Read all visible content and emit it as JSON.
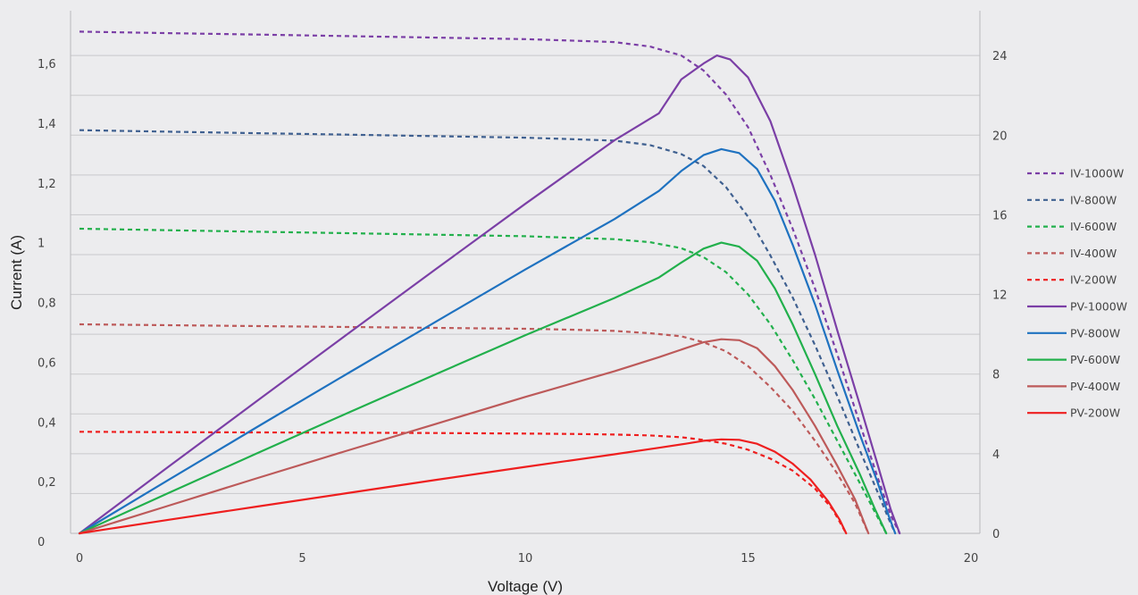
{
  "chart_data": {
    "type": "line",
    "title": "",
    "xlabel": "Voltage (V)",
    "ylabel": "Current (A)",
    "y2label": "",
    "xlim": [
      -0.2,
      20.2
    ],
    "ylim": [
      0,
      1.75
    ],
    "y2lim": [
      0,
      26.25
    ],
    "x_ticks": [
      {
        "value": 0,
        "label": "0"
      },
      {
        "value": 5,
        "label": "5"
      },
      {
        "value": 10,
        "label": "10"
      },
      {
        "value": 15,
        "label": "15"
      },
      {
        "value": 20,
        "label": "20"
      }
    ],
    "y_ticks": [
      {
        "value": 0,
        "label": "0"
      },
      {
        "value": 0.2,
        "label": "0,2"
      },
      {
        "value": 0.4,
        "label": "0,4"
      },
      {
        "value": 0.6,
        "label": "0,6"
      },
      {
        "value": 0.8,
        "label": "0,8"
      },
      {
        "value": 1.0,
        "label": "1"
      },
      {
        "value": 1.2,
        "label": "1,2"
      },
      {
        "value": 1.4,
        "label": "1,4"
      },
      {
        "value": 1.6,
        "label": "1,6"
      }
    ],
    "y2_ticks": [
      {
        "value": 0,
        "label": "0"
      },
      {
        "value": 4,
        "label": "4"
      },
      {
        "value": 8,
        "label": "8"
      },
      {
        "value": 12,
        "label": "12"
      },
      {
        "value": 16,
        "label": "16"
      },
      {
        "value": 20,
        "label": "20"
      },
      {
        "value": 24,
        "label": "24"
      }
    ],
    "grid": "horizontal",
    "legend_position": "right",
    "series": [
      {
        "name": "IV-1000W",
        "axis": "left",
        "style": "dashed",
        "color": "#7b3fa6",
        "x": [
          0,
          2,
          4,
          6,
          8,
          10,
          11,
          12,
          12.8,
          13.5,
          14,
          14.5,
          15,
          15.5,
          16,
          16.5,
          17,
          17.5,
          17.9,
          18.2,
          18.4
        ],
        "y": [
          1.68,
          1.675,
          1.67,
          1.665,
          1.66,
          1.655,
          1.65,
          1.645,
          1.63,
          1.6,
          1.55,
          1.47,
          1.36,
          1.2,
          1.02,
          0.82,
          0.6,
          0.37,
          0.19,
          0.06,
          0
        ]
      },
      {
        "name": "IV-800W",
        "axis": "left",
        "style": "dashed",
        "color": "#3f6090",
        "x": [
          0,
          2,
          4,
          6,
          8,
          10,
          11,
          12,
          12.8,
          13.5,
          14,
          14.5,
          15,
          15.5,
          16,
          16.5,
          17,
          17.5,
          17.9,
          18.15,
          18.3
        ],
        "y": [
          1.35,
          1.345,
          1.34,
          1.335,
          1.33,
          1.325,
          1.32,
          1.315,
          1.3,
          1.27,
          1.23,
          1.16,
          1.06,
          0.93,
          0.79,
          0.63,
          0.46,
          0.28,
          0.14,
          0.05,
          0
        ]
      },
      {
        "name": "IV-600W",
        "axis": "left",
        "style": "dashed",
        "color": "#22b04c",
        "x": [
          0,
          2,
          4,
          6,
          8,
          10,
          11,
          12,
          12.8,
          13.5,
          14,
          14.5,
          15,
          15.5,
          16,
          16.5,
          17,
          17.5,
          17.85,
          18.1
        ],
        "y": [
          1.02,
          1.015,
          1.01,
          1.005,
          1.0,
          0.995,
          0.99,
          0.985,
          0.975,
          0.955,
          0.925,
          0.875,
          0.8,
          0.7,
          0.58,
          0.45,
          0.31,
          0.17,
          0.07,
          0
        ]
      },
      {
        "name": "IV-400W",
        "axis": "left",
        "style": "dashed",
        "color": "#bd5a5a",
        "x": [
          0,
          2,
          4,
          6,
          8,
          10,
          11,
          12,
          12.8,
          13.5,
          14,
          14.5,
          15,
          15.5,
          16,
          16.5,
          17,
          17.4,
          17.7
        ],
        "y": [
          0.7,
          0.697,
          0.694,
          0.691,
          0.688,
          0.685,
          0.682,
          0.678,
          0.67,
          0.66,
          0.64,
          0.61,
          0.56,
          0.49,
          0.41,
          0.31,
          0.2,
          0.1,
          0
        ]
      },
      {
        "name": "IV-200W",
        "axis": "left",
        "style": "dashed",
        "color": "#ee1f1f",
        "x": [
          0,
          2,
          4,
          6,
          8,
          10,
          11,
          12,
          12.8,
          13.5,
          14,
          14.5,
          15,
          15.5,
          16,
          16.5,
          16.9,
          17.2
        ],
        "y": [
          0.34,
          0.339,
          0.338,
          0.337,
          0.336,
          0.334,
          0.333,
          0.331,
          0.328,
          0.322,
          0.313,
          0.3,
          0.28,
          0.25,
          0.21,
          0.15,
          0.08,
          0
        ]
      },
      {
        "name": "PV-1000W",
        "axis": "right",
        "style": "solid",
        "color": "#7b3fa6",
        "x": [
          0,
          2,
          4,
          6,
          8,
          10,
          12,
          13,
          13.5,
          14,
          14.3,
          14.6,
          15,
          15.5,
          16,
          16.5,
          17,
          17.5,
          17.9,
          18.2,
          18.4
        ],
        "y": [
          0,
          3.35,
          6.68,
          9.99,
          13.28,
          16.55,
          19.74,
          21.1,
          22.8,
          23.6,
          24.0,
          23.8,
          22.9,
          20.7,
          17.5,
          14.0,
          10.2,
          6.5,
          3.5,
          1.2,
          0
        ]
      },
      {
        "name": "PV-800W",
        "axis": "right",
        "style": "solid",
        "color": "#1f72c0",
        "x": [
          0,
          2,
          4,
          6,
          8,
          10,
          12,
          13,
          13.5,
          14,
          14.4,
          14.8,
          15.2,
          15.6,
          16,
          16.5,
          17,
          17.5,
          17.9,
          18.15,
          18.3
        ],
        "y": [
          0,
          2.69,
          5.36,
          8.01,
          10.64,
          13.25,
          15.78,
          17.2,
          18.2,
          19.0,
          19.3,
          19.1,
          18.3,
          16.7,
          14.5,
          11.5,
          8.2,
          5.0,
          2.6,
          0.9,
          0
        ]
      },
      {
        "name": "PV-600W",
        "axis": "right",
        "style": "solid",
        "color": "#22b04c",
        "x": [
          0,
          2,
          4,
          6,
          8,
          10,
          12,
          13,
          13.5,
          14,
          14.4,
          14.8,
          15.2,
          15.6,
          16,
          16.5,
          17,
          17.5,
          17.85,
          18.1
        ],
        "y": [
          0,
          2.03,
          4.04,
          6.03,
          8.0,
          9.95,
          11.82,
          12.85,
          13.6,
          14.3,
          14.6,
          14.4,
          13.7,
          12.3,
          10.5,
          8.0,
          5.4,
          3.0,
          1.2,
          0
        ]
      },
      {
        "name": "PV-400W",
        "axis": "right",
        "style": "solid",
        "color": "#bd5a5a",
        "x": [
          0,
          2,
          4,
          6,
          8,
          10,
          12,
          13,
          13.6,
          14,
          14.4,
          14.8,
          15.2,
          15.6,
          16,
          16.5,
          17,
          17.4,
          17.7
        ],
        "y": [
          0,
          1.39,
          2.78,
          4.15,
          5.5,
          6.85,
          8.14,
          8.85,
          9.3,
          9.6,
          9.75,
          9.7,
          9.3,
          8.4,
          7.2,
          5.4,
          3.4,
          1.7,
          0
        ]
      },
      {
        "name": "PV-200W",
        "axis": "right",
        "style": "solid",
        "color": "#ee1f1f",
        "x": [
          0,
          2,
          4,
          6,
          8,
          10,
          12,
          13,
          13.6,
          14,
          14.4,
          14.8,
          15.2,
          15.6,
          16,
          16.4,
          16.8,
          17.05,
          17.2
        ],
        "y": [
          0,
          0.68,
          1.35,
          2.02,
          2.69,
          3.34,
          3.97,
          4.3,
          4.5,
          4.65,
          4.72,
          4.7,
          4.5,
          4.1,
          3.5,
          2.7,
          1.6,
          0.7,
          0
        ]
      }
    ]
  }
}
